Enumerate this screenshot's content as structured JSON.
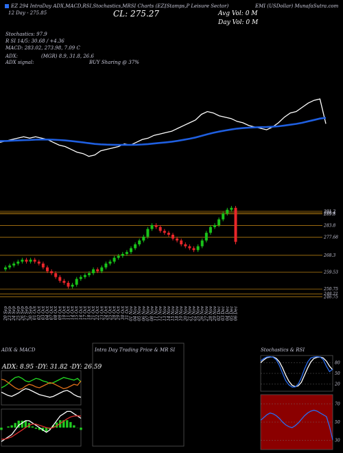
{
  "chart_data": [
    {
      "type": "line",
      "title": "EZ 294 IntraDay ADX,MACD,RSI,Stochastics,MRSI Charts (EZ)",
      "sector": "(Stamps,P Leisure Sector)",
      "source": "EMI (USDollar) MunafaSutra.com",
      "day12": "12 Day - 275.85",
      "close_label": "CL: 275.27",
      "avg_vol": "Avg Vol: 0 M",
      "day_vol": "Day Vol: 0 M",
      "annotations": [
        "Stochastics: 97.9",
        "R SI 14/5: 30.68 / +4.36",
        "MACD: 283.02, 273.98, 7.09 C",
        "ADX:",
        "(MGR) 8.9, 31.8, 26.6",
        "ADX  signal:",
        "BUY Sharing @ 37%"
      ],
      "series": [
        {
          "color": "#ffffff",
          "values": [
            262,
            263,
            264,
            265,
            266,
            265,
            266,
            265,
            264,
            262,
            260,
            259,
            257,
            255,
            254,
            252,
            253,
            256,
            257,
            258,
            259,
            261,
            260,
            262,
            264,
            265,
            267,
            268,
            269,
            270,
            272,
            274,
            276,
            278,
            282,
            284,
            283,
            281,
            280,
            279,
            277,
            276,
            274,
            273,
            272,
            271,
            273,
            276,
            280,
            283,
            284,
            287,
            290,
            292,
            293,
            275.27
          ]
        },
        {
          "color": "#1f5fe0",
          "values": [
            263,
            263,
            263.2,
            263.4,
            263.6,
            263.7,
            263.9,
            264,
            264,
            263.9,
            263.7,
            263.4,
            263,
            262.5,
            262,
            261.4,
            260.9,
            260.6,
            260.4,
            260.3,
            260.2,
            260.2,
            260.2,
            260.3,
            260.5,
            260.8,
            261.2,
            261.6,
            262,
            262.5,
            263.1,
            263.8,
            264.6,
            265.5,
            266.6,
            267.8,
            268.8,
            269.7,
            270.5,
            271.2,
            271.8,
            272.2,
            272.5,
            272.7,
            272.9,
            273,
            273.2,
            273.5,
            274,
            274.6,
            275.2,
            276,
            277,
            278,
            279,
            279.5
          ]
        }
      ]
    },
    {
      "type": "candlestick",
      "up_color": "#19c219",
      "down_color": "#e8262a",
      "line_color": "#b07a12",
      "categories": [
        "20 Sep",
        "23 Sep",
        "24 Sep",
        "25 Sep",
        "26 Sep",
        "27 Sep",
        "30 Sep",
        "01 Oct",
        "02 Oct",
        "03 Oct",
        "04 Oct",
        "07 Oct",
        "08 Oct",
        "09 Oct",
        "10 Oct",
        "11 Oct",
        "14 Oct",
        "15 Oct",
        "16 Oct",
        "17 Oct",
        "18 Oct",
        "21 Oct",
        "22 Oct",
        "23 Oct",
        "24 Oct",
        "25 Oct",
        "28 Oct",
        "29 Oct",
        "30 Oct",
        "31 Oct",
        "01 Nov",
        "04 Nov",
        "05 Nov",
        "06 Nov",
        "07 Nov",
        "08 Nov",
        "11 Nov",
        "12 Nov",
        "13 Nov",
        "14 Nov",
        "15 Nov",
        "18 Nov",
        "19 Nov",
        "20 Nov",
        "21 Nov",
        "22 Nov",
        "25 Nov",
        "26 Nov",
        "27 Nov",
        "28 Nov",
        "29 Nov",
        "02 Dec",
        "03 Dec",
        "04 Dec",
        "05 Dec",
        "06 Dec"
      ],
      "open": [
        261,
        262,
        263,
        264,
        265,
        266,
        265,
        266,
        265,
        264,
        262,
        260,
        259,
        257,
        255,
        254,
        252,
        253,
        256,
        257,
        258,
        259,
        261,
        260,
        262,
        264,
        265,
        267,
        268,
        269,
        270,
        272,
        274,
        276,
        278,
        282,
        284,
        283,
        281,
        280,
        279,
        277,
        276,
        274,
        273,
        272,
        271,
        273,
        276,
        280,
        283,
        284,
        287,
        290,
        292,
        293
      ],
      "high": [
        263,
        264,
        265,
        266,
        267,
        267,
        267,
        267,
        266,
        265,
        263,
        261,
        260,
        258,
        256,
        255,
        254,
        257,
        258,
        259,
        260,
        262,
        262,
        263,
        265,
        266,
        268,
        269,
        270,
        271,
        273,
        275,
        277,
        279,
        283,
        285,
        285,
        284,
        282,
        281,
        280,
        278,
        277,
        275,
        274,
        273,
        274,
        277,
        281,
        284,
        285,
        288,
        291,
        293,
        294,
        294
      ],
      "low": [
        260,
        261,
        262,
        263,
        264,
        264,
        264,
        264,
        263,
        261,
        259,
        258,
        256,
        254,
        253,
        251,
        251,
        252,
        255,
        256,
        257,
        258,
        259,
        259,
        261,
        263,
        264,
        266,
        267,
        268,
        269,
        271,
        273,
        275,
        277,
        281,
        282,
        280,
        279,
        278,
        276,
        275,
        273,
        272,
        271,
        270,
        270,
        272,
        275,
        279,
        282,
        283,
        286,
        289,
        291,
        274
      ],
      "close": [
        262,
        263,
        264,
        265,
        266,
        265,
        266,
        265,
        264,
        262,
        260,
        259,
        257,
        255,
        254,
        252,
        253,
        256,
        257,
        258,
        259,
        261,
        260,
        262,
        264,
        265,
        267,
        268,
        269,
        270,
        272,
        274,
        276,
        278,
        282,
        284,
        283,
        281,
        280,
        279,
        277,
        276,
        274,
        273,
        272,
        271,
        273,
        276,
        280,
        283,
        284,
        287,
        290,
        292,
        293,
        275.27
      ],
      "ylim": [
        244,
        294
      ],
      "yticks": [
        291.2,
        290.4,
        289.8,
        283.8,
        277.68,
        268.3,
        259.53,
        250.75,
        248.21,
        246.75
      ]
    },
    {
      "type": "line",
      "title": "ADX  & MACD",
      "subtitle": "ADX: 8.95  -DY: 31.82  -DY: 26.59",
      "ylim": [
        0,
        40
      ],
      "series": [
        {
          "color": "#22dd22",
          "values": [
            20,
            22,
            25,
            29,
            32,
            33,
            31,
            28,
            27,
            29,
            31,
            30,
            28,
            27,
            25,
            26,
            28,
            30,
            32,
            31,
            30,
            29,
            31,
            27
          ]
        },
        {
          "color": "#e0701a",
          "values": [
            30,
            29,
            26,
            23,
            20,
            18,
            19,
            22,
            24,
            23,
            21,
            20,
            22,
            24,
            26,
            25,
            23,
            21,
            19,
            20,
            22,
            24,
            23,
            28
          ]
        },
        {
          "color": "#ffffff",
          "values": [
            15,
            13,
            11,
            10,
            12,
            14,
            17,
            19,
            18,
            16,
            14,
            12,
            11,
            10,
            9,
            10,
            12,
            14,
            16,
            17,
            15,
            12,
            10,
            9
          ]
        }
      ]
    },
    {
      "type": "line",
      "ylim": [
        -8,
        8
      ],
      "series": [
        {
          "type": "bar",
          "color": "#22cc22",
          "values": [
            -1,
            0,
            0.5,
            1,
            2,
            3,
            3,
            3,
            2,
            0.5,
            -0.5,
            -1,
            -1.5,
            -2,
            -0.7,
            1,
            2.2,
            3.2,
            3.2,
            3.2,
            2.4,
            1,
            -0.1,
            -1
          ]
        },
        {
          "color": "#ffffff",
          "values": [
            -6,
            -5,
            -4,
            -3,
            -1,
            1,
            2,
            3,
            3,
            2,
            1,
            0,
            -1,
            -2,
            -1,
            1,
            3,
            5,
            6,
            7,
            7,
            6,
            5,
            4
          ]
        },
        {
          "color": "#e03030",
          "values": [
            -5,
            -5,
            -4.5,
            -4,
            -3,
            -2,
            -1,
            0,
            1,
            1.5,
            1.5,
            1,
            0.5,
            0,
            -0.3,
            0,
            0.8,
            1.8,
            2.8,
            3.8,
            4.6,
            5,
            5.1,
            5
          ]
        }
      ]
    },
    {
      "type": "line",
      "title": "Intra Day Trading Price & MR SI",
      "series": []
    },
    {
      "type": "line",
      "title": "Stochastics & RSI",
      "ylim": [
        0,
        100
      ],
      "yticks": [
        80,
        50,
        20
      ],
      "series": [
        {
          "color": "#ffffff",
          "values": [
            80,
            88,
            94,
            96,
            96,
            92,
            82,
            65,
            45,
            28,
            17,
            13,
            15,
            25,
            45,
            65,
            82,
            92,
            95,
            96,
            93,
            84,
            70,
            60
          ]
        },
        {
          "color": "#2a6df0",
          "values": [
            85,
            92,
            96,
            97,
            95,
            88,
            72,
            50,
            30,
            18,
            12,
            12,
            20,
            38,
            62,
            82,
            93,
            96,
            97,
            96,
            88,
            70,
            55,
            62
          ]
        }
      ]
    },
    {
      "type": "line",
      "background": "#8b0000",
      "ylim": [
        20,
        80
      ],
      "yticks": [
        70,
        50,
        30
      ],
      "series": [
        {
          "color": "#2a6df0",
          "values": [
            52,
            55,
            58,
            60,
            59,
            57,
            54,
            50,
            47,
            45,
            44,
            46,
            49,
            53,
            57,
            60,
            62,
            63,
            62,
            60,
            58,
            56,
            45,
            30.68
          ]
        }
      ]
    }
  ]
}
